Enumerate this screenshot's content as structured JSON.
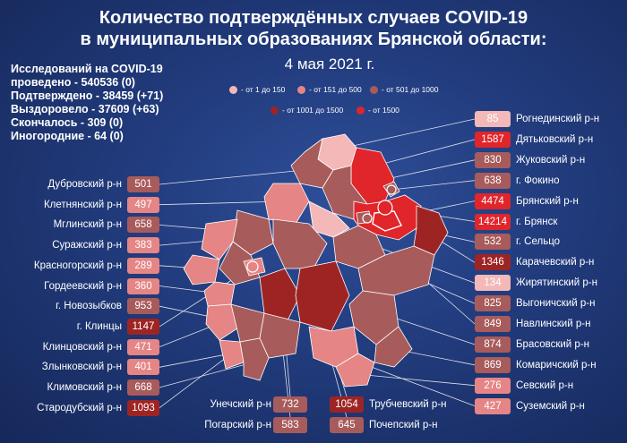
{
  "title_line1": "Количество подтверждённых случаев COVID-19",
  "title_line2": "в муниципальных образованиях Брянской области:",
  "date": "4 мая 2021 г.",
  "stats": [
    "Исследований на COVID-19",
    "проведено - 540536 (0)",
    "Подтверждено - 38459 (+71)",
    "Выздоровело - 37609 (+63)",
    "Скончалось - 309 (0)",
    "Иногородние - 64 (0)"
  ],
  "legend": [
    {
      "label": "- от 1 до 150",
      "color": "#f4b8b8"
    },
    {
      "label": "- от 151 до 500",
      "color": "#e58585"
    },
    {
      "label": "- от 501 до 1000",
      "color": "#a85b5b"
    },
    {
      "label": "- от 1001 до 1500",
      "color": "#9e2424"
    },
    {
      "label": "- от 1500",
      "color": "#e0252b"
    }
  ],
  "districts_left": [
    {
      "name": "Дубровский р-н",
      "value": "501",
      "color": "#a85b5b"
    },
    {
      "name": "Клетнянский р-н",
      "value": "497",
      "color": "#e58585"
    },
    {
      "name": "Мглинский р-н",
      "value": "658",
      "color": "#a85b5b"
    },
    {
      "name": "Суражский р-н",
      "value": "383",
      "color": "#e58585"
    },
    {
      "name": "Красногорский р-н",
      "value": "289",
      "color": "#e58585"
    },
    {
      "name": "Гордеевский р-н",
      "value": "360",
      "color": "#e58585"
    },
    {
      "name": "г. Новозыбков",
      "value": "953",
      "color": "#a85b5b"
    },
    {
      "name": "г. Клинцы",
      "value": "1147",
      "color": "#9e2424"
    },
    {
      "name": "Клинцовский р-н",
      "value": "471",
      "color": "#e58585"
    },
    {
      "name": "Злынковский р-н",
      "value": "401",
      "color": "#e58585"
    },
    {
      "name": "Климовский  р-н",
      "value": "668",
      "color": "#a85b5b"
    },
    {
      "name": "Стародубский р-н",
      "value": "1093",
      "color": "#9e2424"
    }
  ],
  "districts_right": [
    {
      "name": "Рогнединский р-н",
      "value": "85",
      "color": "#f4b8b8"
    },
    {
      "name": "Дятьковский р-н",
      "value": "1587",
      "color": "#e0252b"
    },
    {
      "name": "Жуковский р-н",
      "value": "830",
      "color": "#a85b5b"
    },
    {
      "name": "г. Фокино",
      "value": "638",
      "color": "#a85b5b"
    },
    {
      "name": "Брянский р-н",
      "value": "4474",
      "color": "#e0252b"
    },
    {
      "name": "г. Брянск",
      "value": "14214",
      "color": "#e0252b"
    },
    {
      "name": "г. Сельцо",
      "value": "532",
      "color": "#a85b5b"
    },
    {
      "name": "Карачевский р-н",
      "value": "1346",
      "color": "#9e2424"
    },
    {
      "name": "Жирятинский р-н",
      "value": "134",
      "color": "#f4b8b8"
    },
    {
      "name": "Выгоничский р-н",
      "value": "825",
      "color": "#a85b5b"
    },
    {
      "name": "Навлинский р-н",
      "value": "849",
      "color": "#a85b5b"
    },
    {
      "name": "Брасовский р-н",
      "value": "874",
      "color": "#a85b5b"
    },
    {
      "name": "Комаричский р-н",
      "value": "869",
      "color": "#a85b5b"
    },
    {
      "name": "Севский р-н",
      "value": "276",
      "color": "#e58585"
    },
    {
      "name": "Суземский р-н",
      "value": "427",
      "color": "#e58585"
    }
  ],
  "districts_bottom": [
    {
      "name": "Унечский р-н",
      "value": "732",
      "color": "#a85b5b"
    },
    {
      "name": "Погарский р-н",
      "value": "583",
      "color": "#a85b5b"
    },
    {
      "name": "Трубчевский р-н",
      "value": "1054",
      "color": "#9e2424"
    },
    {
      "name": "Почепский р-н",
      "value": "645",
      "color": "#a85b5b"
    }
  ]
}
